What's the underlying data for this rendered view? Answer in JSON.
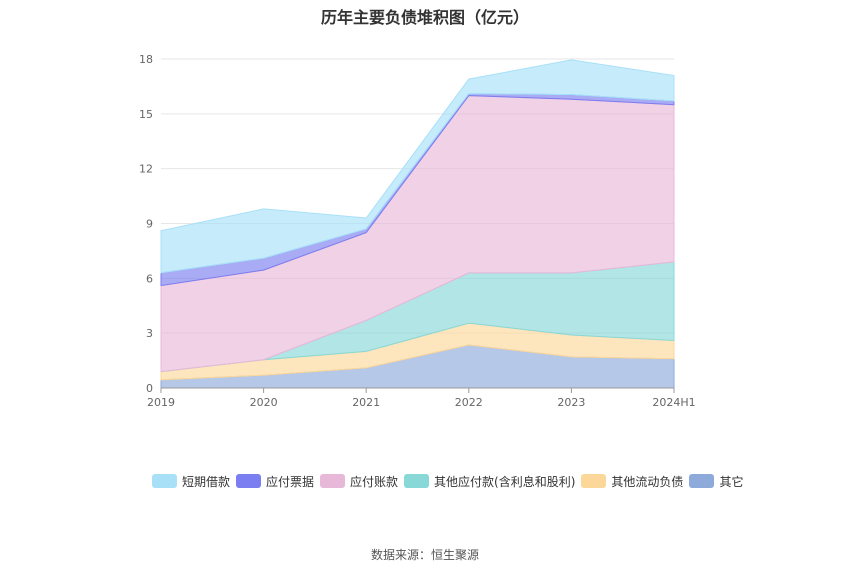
{
  "chart_data": {
    "type": "area",
    "stacked": true,
    "title": "历年主要负债堆积图（亿元）",
    "categories": [
      "2019",
      "2020",
      "2021",
      "2022",
      "2023",
      "2024H1"
    ],
    "ylim": [
      0,
      18
    ],
    "yticks": [
      0,
      3,
      6,
      9,
      12,
      15,
      18
    ],
    "grid": true,
    "legend_position": "bottom",
    "series": [
      {
        "name": "其它",
        "color": "#8eaadb",
        "values": [
          0.45,
          0.7,
          1.1,
          2.35,
          1.7,
          1.6
        ]
      },
      {
        "name": "其他流动负债",
        "color": "#fcd79a",
        "values": [
          0.45,
          0.85,
          0.9,
          1.2,
          1.2,
          1.0
        ]
      },
      {
        "name": "其他应付款(含利息和股利)",
        "color": "#88d8d8",
        "values": [
          0.0,
          0.0,
          1.7,
          2.75,
          3.4,
          4.3
        ]
      },
      {
        "name": "应付账款",
        "color": "#e8b8d8",
        "values": [
          4.7,
          4.9,
          4.8,
          9.7,
          9.5,
          8.6
        ]
      },
      {
        "name": "应付票据",
        "color": "#7b7ef0",
        "values": [
          0.7,
          0.65,
          0.2,
          0.1,
          0.25,
          0.2
        ]
      },
      {
        "name": "短期借款",
        "color": "#a8e0f8",
        "values": [
          2.3,
          2.7,
          0.6,
          0.8,
          1.9,
          1.4
        ]
      }
    ],
    "legend_order": [
      "短期借款",
      "应付票据",
      "应付账款",
      "其他应付款(含利息和股利)",
      "其他流动负债",
      "其它"
    ]
  },
  "source_text": "数据来源：恒生聚源"
}
